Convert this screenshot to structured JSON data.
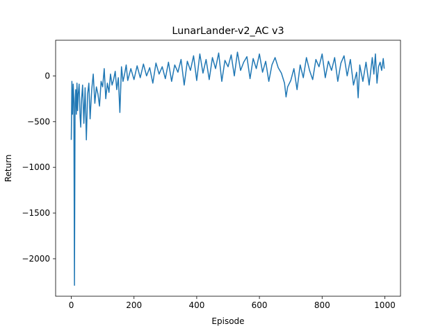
{
  "chart_data": {
    "type": "line",
    "title": "LunarLander-v2_AC v3",
    "xlabel": "Episode",
    "ylabel": "Return",
    "xlim": [
      -50,
      1050
    ],
    "ylim": [
      -2410,
      390
    ],
    "xticks": [
      0,
      200,
      400,
      600,
      800,
      1000
    ],
    "yticks": [
      -2000,
      -1500,
      -1000,
      -500,
      0
    ],
    "xtick_labels": [
      "0",
      "200",
      "400",
      "600",
      "800",
      "1000"
    ],
    "ytick_labels": [
      "−2000",
      "−1500",
      "−1000",
      "−500",
      "0"
    ],
    "grid": false,
    "series": [
      {
        "color": "#1f77b4",
        "x": [
          0,
          2,
          4,
          6,
          8,
          10,
          12,
          14,
          16,
          18,
          20,
          22,
          25,
          28,
          30,
          33,
          36,
          40,
          44,
          48,
          52,
          56,
          60,
          65,
          70,
          75,
          80,
          85,
          90,
          95,
          100,
          105,
          110,
          115,
          120,
          125,
          130,
          135,
          140,
          145,
          150,
          155,
          160,
          165,
          170,
          175,
          180,
          190,
          200,
          210,
          220,
          230,
          240,
          250,
          260,
          270,
          280,
          290,
          300,
          310,
          320,
          330,
          340,
          350,
          360,
          370,
          380,
          390,
          400,
          410,
          420,
          430,
          440,
          450,
          460,
          470,
          480,
          490,
          500,
          510,
          520,
          530,
          540,
          550,
          560,
          570,
          580,
          590,
          600,
          610,
          620,
          630,
          640,
          650,
          660,
          670,
          680,
          685,
          690,
          700,
          710,
          720,
          730,
          740,
          750,
          760,
          770,
          780,
          790,
          800,
          810,
          820,
          830,
          840,
          850,
          860,
          870,
          880,
          890,
          900,
          910,
          915,
          920,
          930,
          940,
          950,
          960,
          965,
          970,
          975,
          980,
          985,
          990,
          995,
          998
        ],
        "y": [
          -700,
          -60,
          -420,
          -90,
          -250,
          -2290,
          -300,
          -150,
          -420,
          -80,
          -380,
          -200,
          -90,
          -450,
          -560,
          -250,
          -100,
          -520,
          -130,
          -700,
          -200,
          -80,
          -470,
          -150,
          20,
          -300,
          -120,
          -200,
          -330,
          -60,
          -120,
          80,
          -250,
          -80,
          -180,
          20,
          -100,
          -40,
          50,
          -150,
          -20,
          -400,
          100,
          -60,
          20,
          120,
          -50,
          80,
          -40,
          110,
          -20,
          130,
          0,
          90,
          -80,
          140,
          20,
          100,
          -30,
          150,
          -60,
          120,
          40,
          180,
          -100,
          160,
          60,
          220,
          -50,
          240,
          30,
          180,
          -40,
          200,
          80,
          250,
          -60,
          170,
          100,
          230,
          0,
          260,
          60,
          150,
          210,
          -30,
          190,
          80,
          240,
          40,
          160,
          -60,
          120,
          200,
          90,
          30,
          -80,
          -230,
          -120,
          -50,
          80,
          -150,
          120,
          -20,
          200,
          60,
          -40,
          180,
          100,
          240,
          -20,
          160,
          60,
          200,
          -60,
          140,
          220,
          0,
          180,
          -100,
          40,
          -240,
          120,
          -60,
          150,
          -100,
          200,
          20,
          240,
          -80,
          100,
          150,
          60,
          190,
          80
        ]
      }
    ]
  }
}
